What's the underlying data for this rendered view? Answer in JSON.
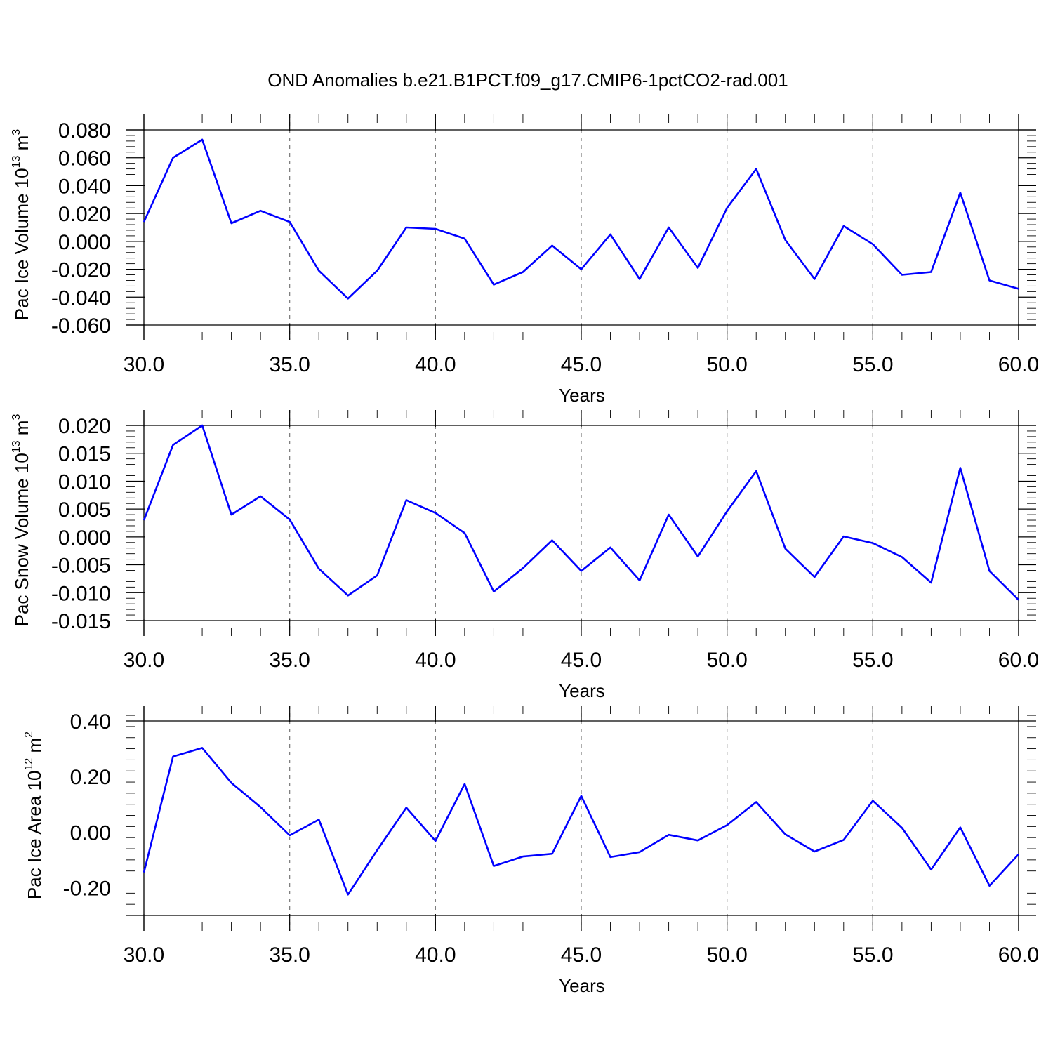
{
  "title": "OND Anomalies b.e21.B1PCT.f09_g17.CMIP6-1pctCO2-rad.001",
  "series_color": "#0000ff",
  "chart_data": [
    {
      "type": "line",
      "ylabel_prefix": "Pac Ice Volume 10",
      "ylabel_exp": "13",
      "ylabel_unit": " m",
      "ylabel_unit_exp": "3",
      "xlabel": "Years",
      "xlim": [
        30,
        60
      ],
      "ylim": [
        -0.06,
        0.08
      ],
      "xticks": [
        30,
        35,
        40,
        45,
        50,
        55,
        60
      ],
      "xtick_labels": [
        "30.0",
        "35.0",
        "40.0",
        "45.0",
        "50.0",
        "55.0",
        "60.0"
      ],
      "yticks": [
        0.08,
        0.06,
        0.04,
        0.02,
        0.0,
        -0.02,
        -0.04,
        -0.06
      ],
      "ytick_labels": [
        "0.080",
        "0.060",
        "0.040",
        "0.020",
        "0.000",
        "-0.020",
        "-0.040",
        "-0.060"
      ],
      "grid": "vertical dashed at major x ticks",
      "x": [
        30,
        31,
        32,
        33,
        34,
        35,
        36,
        37,
        38,
        39,
        40,
        41,
        42,
        43,
        44,
        45,
        46,
        47,
        48,
        49,
        50,
        51,
        52,
        53,
        54,
        55,
        56,
        57,
        58,
        59,
        60
      ],
      "y": [
        0.014,
        0.06,
        0.073,
        0.013,
        0.022,
        0.014,
        -0.021,
        -0.041,
        -0.021,
        0.01,
        0.009,
        0.002,
        -0.031,
        -0.022,
        -0.003,
        -0.02,
        0.005,
        -0.027,
        0.01,
        -0.019,
        0.024,
        0.052,
        0.001,
        -0.027,
        0.011,
        -0.002,
        -0.024,
        -0.022,
        0.035,
        -0.028,
        -0.034
      ]
    },
    {
      "type": "line",
      "ylabel_prefix": "Pac Snow Volume 10",
      "ylabel_exp": "13",
      "ylabel_unit": " m",
      "ylabel_unit_exp": "3",
      "xlabel": "Years",
      "xlim": [
        30,
        60
      ],
      "ylim": [
        -0.015,
        0.02
      ],
      "xticks": [
        30,
        35,
        40,
        45,
        50,
        55,
        60
      ],
      "xtick_labels": [
        "30.0",
        "35.0",
        "40.0",
        "45.0",
        "50.0",
        "55.0",
        "60.0"
      ],
      "yticks": [
        0.02,
        0.015,
        0.01,
        0.005,
        0.0,
        -0.005,
        -0.01,
        -0.015
      ],
      "ytick_labels": [
        "0.020",
        "0.015",
        "0.010",
        "0.005",
        "0.000",
        "-0.005",
        "-0.010",
        "-0.015"
      ],
      "grid": "vertical dashed at major x ticks",
      "x": [
        30,
        31,
        32,
        33,
        34,
        35,
        36,
        37,
        38,
        39,
        40,
        41,
        42,
        43,
        44,
        45,
        46,
        47,
        48,
        49,
        50,
        51,
        52,
        53,
        54,
        55,
        56,
        57,
        58,
        59,
        60
      ],
      "y": [
        0.003,
        0.0165,
        0.02,
        0.004,
        0.0073,
        0.0031,
        -0.0057,
        -0.0105,
        -0.0069,
        0.0066,
        0.0043,
        0.0007,
        -0.0098,
        -0.0056,
        -0.0006,
        -0.0061,
        -0.0019,
        -0.0078,
        0.004,
        -0.0035,
        0.0046,
        0.0118,
        -0.0021,
        -0.0072,
        0.0001,
        -0.0011,
        -0.0036,
        -0.0082,
        0.0124,
        -0.0061,
        -0.0113
      ]
    },
    {
      "type": "line",
      "ylabel_prefix": "Pac Ice Area 10",
      "ylabel_exp": "12",
      "ylabel_unit": " m",
      "ylabel_unit_exp": "2",
      "xlabel": "Years",
      "xlim": [
        30,
        60
      ],
      "ylim": [
        -0.3,
        0.4
      ],
      "xticks": [
        30,
        35,
        40,
        45,
        50,
        55,
        60
      ],
      "xtick_labels": [
        "30.0",
        "35.0",
        "40.0",
        "45.0",
        "50.0",
        "55.0",
        "60.0"
      ],
      "yticks": [
        0.4,
        0.2,
        0.0,
        -0.2
      ],
      "ytick_labels": [
        "0.40",
        "0.20",
        "0.00",
        "-0.20"
      ],
      "grid": "vertical dashed at major x ticks",
      "x": [
        30,
        31,
        32,
        33,
        34,
        35,
        36,
        37,
        38,
        39,
        40,
        41,
        42,
        43,
        44,
        45,
        46,
        47,
        48,
        49,
        50,
        51,
        52,
        53,
        54,
        55,
        56,
        57,
        58,
        59,
        60
      ],
      "y": [
        -0.145,
        0.272,
        0.303,
        0.177,
        0.09,
        -0.012,
        0.045,
        -0.225,
        -0.065,
        0.088,
        -0.032,
        0.173,
        -0.122,
        -0.088,
        -0.078,
        0.13,
        -0.09,
        -0.072,
        -0.01,
        -0.03,
        0.025,
        0.108,
        -0.008,
        -0.07,
        -0.028,
        0.113,
        0.015,
        -0.135,
        0.017,
        -0.193,
        -0.08
      ]
    }
  ]
}
